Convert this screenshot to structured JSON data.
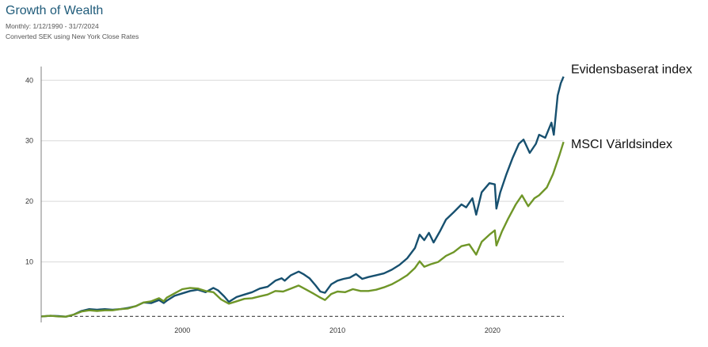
{
  "header": {
    "title": "Growth of Wealth",
    "period": "Monthly: 1/12/1990 - 31/7/2024",
    "note": "Converted SEK using New York Close Rates"
  },
  "chart_data": {
    "type": "line",
    "x_range": [
      1990.9,
      2024.6
    ],
    "ylim": [
      0,
      42
    ],
    "yticks": [
      10,
      20,
      30,
      40
    ],
    "xticks": [
      2000,
      2010,
      2020
    ],
    "grid": true,
    "baseline": 1,
    "series": [
      {
        "name": "Evidensbaserat index",
        "color": "#17506f",
        "points": [
          [
            1990.92,
            1.0
          ],
          [
            1991.5,
            1.1
          ],
          [
            1992.0,
            1.05
          ],
          [
            1992.5,
            0.95
          ],
          [
            1993.0,
            1.3
          ],
          [
            1993.5,
            1.9
          ],
          [
            1994.0,
            2.2
          ],
          [
            1994.5,
            2.1
          ],
          [
            1995.0,
            2.2
          ],
          [
            1995.5,
            2.1
          ],
          [
            1996.0,
            2.2
          ],
          [
            1996.5,
            2.4
          ],
          [
            1997.0,
            2.7
          ],
          [
            1997.5,
            3.3
          ],
          [
            1998.0,
            3.2
          ],
          [
            1998.5,
            3.7
          ],
          [
            1998.8,
            3.2
          ],
          [
            1999.0,
            3.6
          ],
          [
            1999.5,
            4.4
          ],
          [
            2000.0,
            4.8
          ],
          [
            2000.5,
            5.2
          ],
          [
            2001.0,
            5.4
          ],
          [
            2001.5,
            5.0
          ],
          [
            2002.0,
            5.7
          ],
          [
            2002.3,
            5.3
          ],
          [
            2002.7,
            4.3
          ],
          [
            2003.0,
            3.4
          ],
          [
            2003.5,
            4.2
          ],
          [
            2004.0,
            4.6
          ],
          [
            2004.5,
            5.0
          ],
          [
            2005.0,
            5.6
          ],
          [
            2005.5,
            5.9
          ],
          [
            2006.0,
            6.9
          ],
          [
            2006.4,
            7.3
          ],
          [
            2006.6,
            6.9
          ],
          [
            2007.0,
            7.8
          ],
          [
            2007.5,
            8.4
          ],
          [
            2007.8,
            8.0
          ],
          [
            2008.2,
            7.3
          ],
          [
            2008.6,
            6.1
          ],
          [
            2008.9,
            5.1
          ],
          [
            2009.2,
            4.9
          ],
          [
            2009.6,
            6.3
          ],
          [
            2010.0,
            6.9
          ],
          [
            2010.4,
            7.2
          ],
          [
            2010.8,
            7.4
          ],
          [
            2011.2,
            8.0
          ],
          [
            2011.6,
            7.2
          ],
          [
            2012.0,
            7.5
          ],
          [
            2012.5,
            7.8
          ],
          [
            2013.0,
            8.1
          ],
          [
            2013.5,
            8.7
          ],
          [
            2014.0,
            9.5
          ],
          [
            2014.5,
            10.6
          ],
          [
            2015.0,
            12.3
          ],
          [
            2015.3,
            14.5
          ],
          [
            2015.6,
            13.6
          ],
          [
            2015.9,
            14.8
          ],
          [
            2016.2,
            13.2
          ],
          [
            2016.6,
            15.0
          ],
          [
            2017.0,
            17.0
          ],
          [
            2017.5,
            18.2
          ],
          [
            2018.0,
            19.5
          ],
          [
            2018.3,
            19.0
          ],
          [
            2018.7,
            20.5
          ],
          [
            2018.95,
            17.8
          ],
          [
            2019.3,
            21.5
          ],
          [
            2019.8,
            23.0
          ],
          [
            2020.15,
            22.8
          ],
          [
            2020.25,
            18.8
          ],
          [
            2020.5,
            21.5
          ],
          [
            2020.9,
            24.5
          ],
          [
            2021.3,
            27.2
          ],
          [
            2021.7,
            29.5
          ],
          [
            2022.0,
            30.2
          ],
          [
            2022.4,
            28.0
          ],
          [
            2022.8,
            29.5
          ],
          [
            2023.0,
            31.0
          ],
          [
            2023.4,
            30.5
          ],
          [
            2023.8,
            33.0
          ],
          [
            2023.95,
            31.0
          ],
          [
            2024.2,
            37.5
          ],
          [
            2024.4,
            39.5
          ],
          [
            2024.58,
            40.6
          ]
        ]
      },
      {
        "name": "MSCI Världsindex",
        "color": "#6f9628",
        "points": [
          [
            1990.92,
            1.0
          ],
          [
            1991.5,
            1.1
          ],
          [
            1992.0,
            1.0
          ],
          [
            1992.5,
            0.95
          ],
          [
            1993.0,
            1.3
          ],
          [
            1993.5,
            1.8
          ],
          [
            1994.0,
            2.0
          ],
          [
            1994.5,
            1.9
          ],
          [
            1995.0,
            2.0
          ],
          [
            1995.5,
            2.0
          ],
          [
            1996.0,
            2.2
          ],
          [
            1996.5,
            2.3
          ],
          [
            1997.0,
            2.7
          ],
          [
            1997.5,
            3.3
          ],
          [
            1998.0,
            3.5
          ],
          [
            1998.5,
            4.0
          ],
          [
            1998.8,
            3.5
          ],
          [
            1999.0,
            4.1
          ],
          [
            1999.5,
            4.8
          ],
          [
            2000.0,
            5.5
          ],
          [
            2000.5,
            5.7
          ],
          [
            2001.0,
            5.6
          ],
          [
            2001.5,
            5.2
          ],
          [
            2002.0,
            5.0
          ],
          [
            2002.5,
            3.8
          ],
          [
            2003.0,
            3.1
          ],
          [
            2003.5,
            3.5
          ],
          [
            2004.0,
            3.9
          ],
          [
            2004.5,
            4.0
          ],
          [
            2005.0,
            4.3
          ],
          [
            2005.5,
            4.6
          ],
          [
            2006.0,
            5.2
          ],
          [
            2006.5,
            5.1
          ],
          [
            2007.0,
            5.6
          ],
          [
            2007.5,
            6.1
          ],
          [
            2008.0,
            5.4
          ],
          [
            2008.5,
            4.7
          ],
          [
            2008.9,
            4.1
          ],
          [
            2009.2,
            3.7
          ],
          [
            2009.6,
            4.7
          ],
          [
            2010.0,
            5.1
          ],
          [
            2010.5,
            5.0
          ],
          [
            2011.0,
            5.5
          ],
          [
            2011.5,
            5.2
          ],
          [
            2012.0,
            5.2
          ],
          [
            2012.5,
            5.4
          ],
          [
            2013.0,
            5.8
          ],
          [
            2013.5,
            6.3
          ],
          [
            2014.0,
            7.0
          ],
          [
            2014.5,
            7.8
          ],
          [
            2015.0,
            9.0
          ],
          [
            2015.3,
            10.1
          ],
          [
            2015.6,
            9.2
          ],
          [
            2016.0,
            9.6
          ],
          [
            2016.5,
            10.0
          ],
          [
            2017.0,
            11.0
          ],
          [
            2017.5,
            11.6
          ],
          [
            2018.0,
            12.6
          ],
          [
            2018.5,
            12.9
          ],
          [
            2018.95,
            11.2
          ],
          [
            2019.3,
            13.3
          ],
          [
            2019.8,
            14.5
          ],
          [
            2020.15,
            15.2
          ],
          [
            2020.25,
            12.7
          ],
          [
            2020.6,
            15.0
          ],
          [
            2021.0,
            17.1
          ],
          [
            2021.5,
            19.5
          ],
          [
            2021.9,
            21.0
          ],
          [
            2022.3,
            19.2
          ],
          [
            2022.7,
            20.5
          ],
          [
            2023.0,
            21.0
          ],
          [
            2023.5,
            22.3
          ],
          [
            2023.9,
            24.5
          ],
          [
            2024.3,
            27.5
          ],
          [
            2024.58,
            29.8
          ]
        ]
      }
    ]
  }
}
